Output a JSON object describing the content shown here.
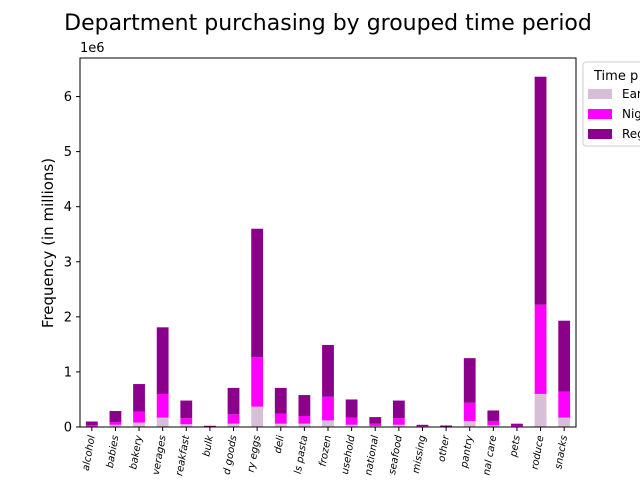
{
  "chart_data": {
    "type": "bar",
    "stacked": true,
    "title": "Department purchasing by grouped time period",
    "ylabel": "Frequency (in millions)",
    "xlabel": "",
    "y_offset_text": "1e6",
    "ylim": [
      0,
      6700000
    ],
    "yticks": [
      0,
      1000000,
      2000000,
      3000000,
      4000000,
      5000000,
      6000000
    ],
    "ytick_labels": [
      "0",
      "1",
      "2",
      "3",
      "4",
      "5",
      "6"
    ],
    "categories": [
      "alcohol",
      "babies",
      "bakery",
      "beverages",
      "breakfast",
      "bulk",
      "canned goods",
      "dairy eggs",
      "deli",
      "dry goods pasta",
      "frozen",
      "household",
      "international",
      "meat seafood",
      "missing",
      "other",
      "pantry",
      "personal care",
      "pets",
      "produce",
      "snacks"
    ],
    "category_labels_visible": [
      "alcohol",
      "babies",
      "bakery",
      "verages",
      "reakfast",
      "bulk",
      "d goods",
      "ry eggs",
      "deli",
      "ls pasta",
      "frozen",
      "usehold",
      "national",
      "seafood",
      "missing",
      "other",
      "pantry",
      "nal care",
      "pets",
      "roduce",
      "snacks"
    ],
    "legend": {
      "title": "Time p",
      "placement": "outside-right-top",
      "entries": [
        "Ear",
        "Nig",
        "Reg"
      ]
    },
    "series": [
      {
        "name": "Ear",
        "color": "#d8bfd8",
        "values": [
          10000,
          40000,
          80000,
          170000,
          50000,
          2000,
          60000,
          370000,
          60000,
          60000,
          120000,
          40000,
          20000,
          40000,
          5000,
          2000,
          110000,
          30000,
          5000,
          600000,
          170000
        ]
      },
      {
        "name": "Nig",
        "color": "#ff00ff",
        "values": [
          20000,
          50000,
          200000,
          430000,
          110000,
          5000,
          170000,
          900000,
          180000,
          140000,
          430000,
          130000,
          40000,
          120000,
          10000,
          5000,
          330000,
          80000,
          15000,
          1620000,
          470000
        ]
      },
      {
        "name": "Reg",
        "color": "#8b008b",
        "values": [
          70000,
          200000,
          500000,
          1210000,
          320000,
          15000,
          480000,
          2330000,
          470000,
          380000,
          940000,
          330000,
          120000,
          320000,
          25000,
          20000,
          810000,
          190000,
          40000,
          4140000,
          1290000
        ]
      }
    ]
  }
}
